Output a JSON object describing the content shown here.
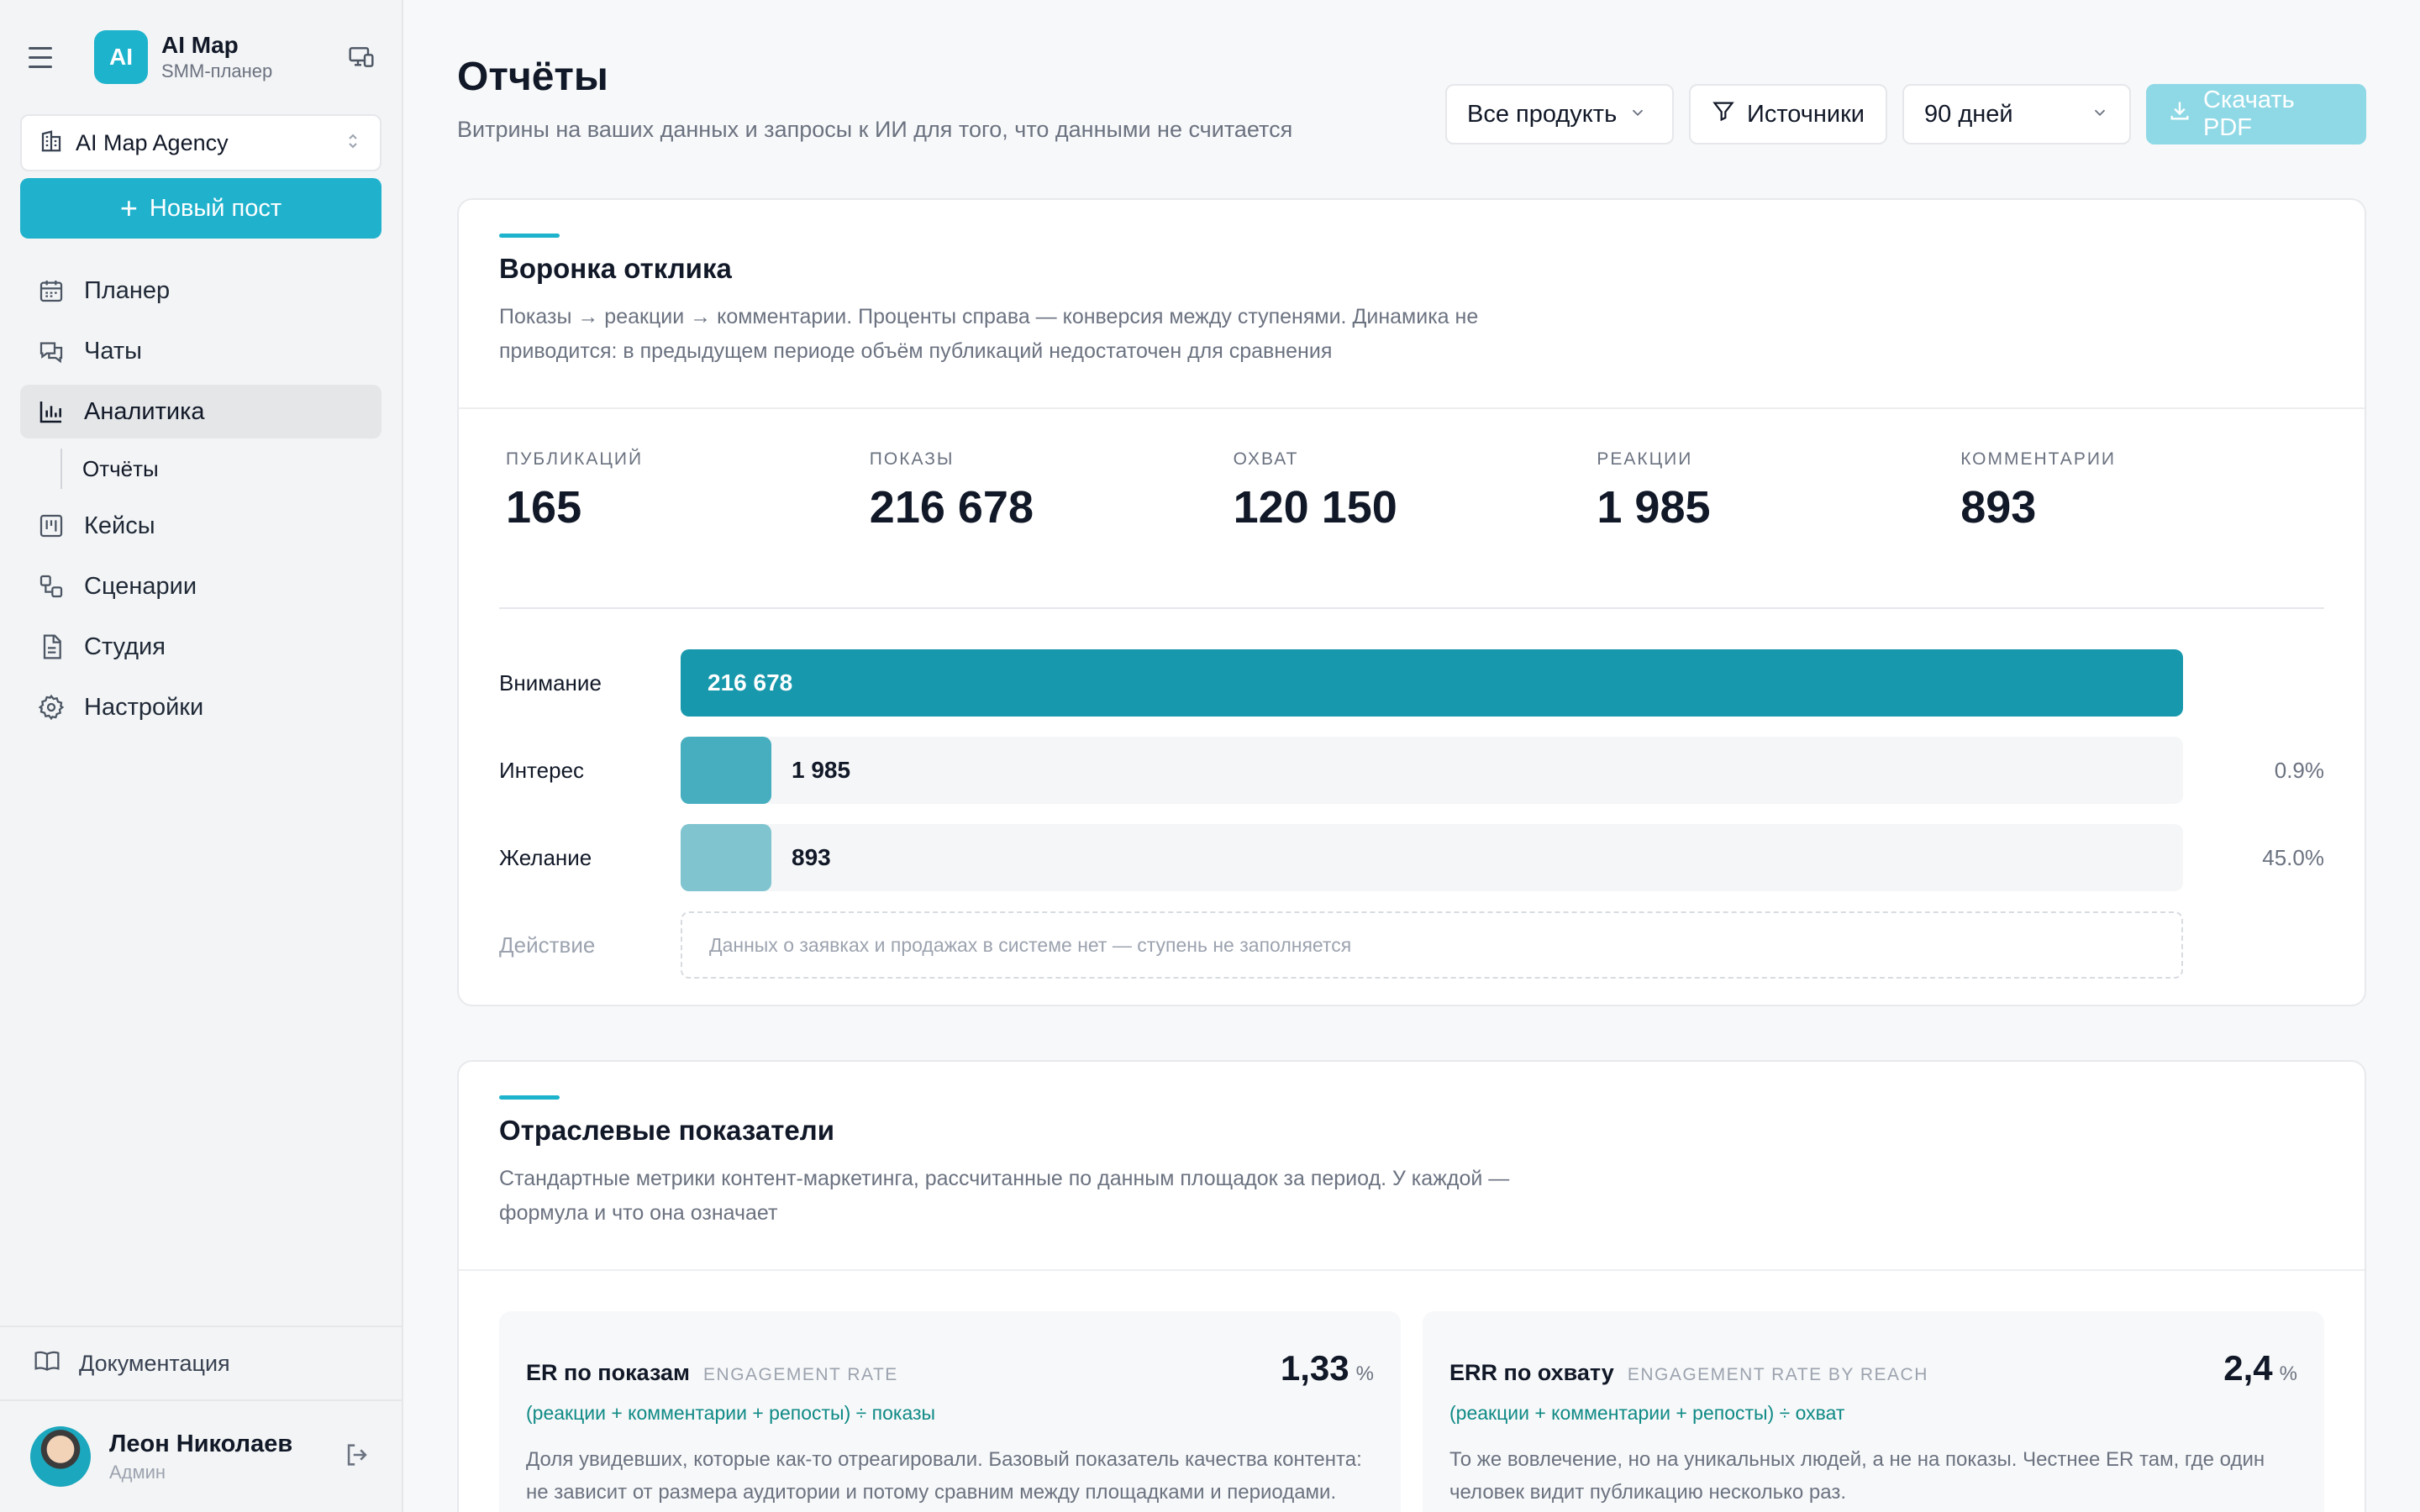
{
  "sidebar": {
    "brand": {
      "logo": "AI",
      "name": "AI Map",
      "subtitle": "SMM-планер"
    },
    "workspace": "AI Map Agency",
    "new_post": "Новый пост",
    "nav": [
      {
        "label": "Планер",
        "icon": "calendar-icon"
      },
      {
        "label": "Чаты",
        "icon": "chat-icon"
      },
      {
        "label": "Аналитика",
        "icon": "bar-chart-icon",
        "active": true
      },
      {
        "label": "Кейсы",
        "icon": "kanban-icon"
      },
      {
        "label": "Сценарии",
        "icon": "workflow-icon"
      },
      {
        "label": "Студия",
        "icon": "document-icon"
      },
      {
        "label": "Настройки",
        "icon": "gear-icon"
      }
    ],
    "sub_item": "Отчёты",
    "docs": "Документация",
    "user": {
      "name": "Леон Николаев",
      "role": "Админ"
    }
  },
  "header": {
    "title": "Отчёты",
    "subtitle": "Витрины на ваших данных и запросы к ИИ для того, что данными не считается",
    "filters": {
      "products": "Все продукть",
      "sources": "Источники",
      "period": "90 дней",
      "download": "Скачать PDF"
    }
  },
  "funnel_card": {
    "title": "Воронка отклика",
    "description": "Показы → реакции → комментарии. Проценты справа — конверсия между ступенями. Динамика не приводится: в предыдущем периоде объём публикаций недостаточен для сравнения",
    "kpis": [
      {
        "label": "ПУБЛИКАЦИЙ",
        "value": "165"
      },
      {
        "label": "ПОКАЗЫ",
        "value": "216 678"
      },
      {
        "label": "ОХВАТ",
        "value": "120 150"
      },
      {
        "label": "РЕАКЦИИ",
        "value": "1 985"
      },
      {
        "label": "КОММЕНТАРИИ",
        "value": "893"
      }
    ],
    "stages": [
      {
        "label": "Внимание",
        "value": "216 678",
        "fill": 1.0,
        "color": "#1898ac",
        "conversion": ""
      },
      {
        "label": "Интерес",
        "value": "1 985",
        "fill": 0.009,
        "color": "#46aebf",
        "conversion": "0.9%"
      },
      {
        "label": "Желание",
        "value": "893",
        "fill": 0.004,
        "color": "#7fc4cf",
        "conversion": "45.0%"
      }
    ],
    "action_stage": {
      "label": "Действие",
      "empty_text": "Данных о заявках и продажах в системе нет — ступень не заполняется"
    }
  },
  "industry_card": {
    "title": "Отраслевые показатели",
    "description": "Стандартные метрики контент-маркетинга, рассчитанные по данным площадок за период. У каждой — формула и что она означает",
    "metrics": [
      {
        "name": "ER по показам",
        "name_en": "ENGAGEMENT RATE",
        "value": "1,33",
        "unit": "%",
        "formula": "(реакции + комментарии + репосты) ÷ показы",
        "description": "Доля увидевших, которые как-то отреагировали. Базовый показатель качества контента: не зависит от размера аудитории и потому сравним между площадками и периодами."
      },
      {
        "name": "ERR по охвату",
        "name_en": "ENGAGEMENT RATE BY REACH",
        "value": "2,4",
        "unit": "%",
        "formula": "(реакции + комментарии + репосты) ÷ охват",
        "description": "То же вовлечение, но на уникальных людей, а не на показы. Честнее ER там, где один человек видит публикацию несколько раз."
      }
    ]
  },
  "colors": {
    "accent": "#1eb3cc",
    "primary_button": "#20b2cd",
    "disabled_button": "#8fd9e6",
    "formula": "#0f8a86"
  }
}
